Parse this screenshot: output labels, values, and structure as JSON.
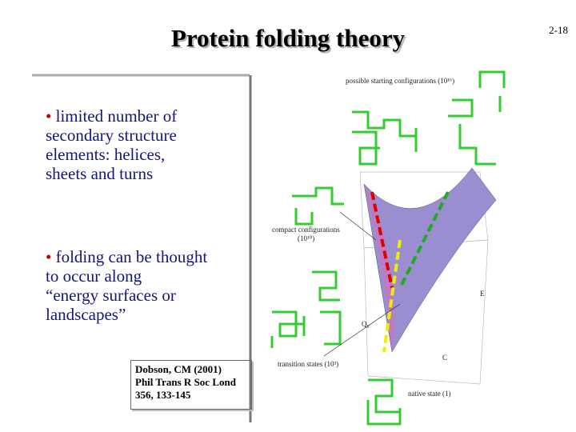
{
  "slide_number": "2-18",
  "title": "Protein folding theory",
  "bullets": [
    {
      "marker": "•",
      "lines": [
        "limited number of",
        "secondary structure",
        "elements: helices,",
        "sheets and turns"
      ]
    },
    {
      "marker": "•",
      "lines": [
        "folding can be thought",
        "to occur along",
        "“energy surfaces or",
        "landscapes”"
      ]
    }
  ],
  "citation": [
    "Dobson, CM (2001)",
    "Phil Trans R Soc Lond",
    "356, 133-145"
  ],
  "figure": {
    "starting": "possible starting configurations (10¹⁶)",
    "compact": [
      "compact configurations",
      "(10¹⁰)"
    ],
    "transition": "transition states (10³)",
    "native": "native state (1)",
    "axis_q": "Q₀",
    "axis_c": "C",
    "axis_e": "E"
  }
}
